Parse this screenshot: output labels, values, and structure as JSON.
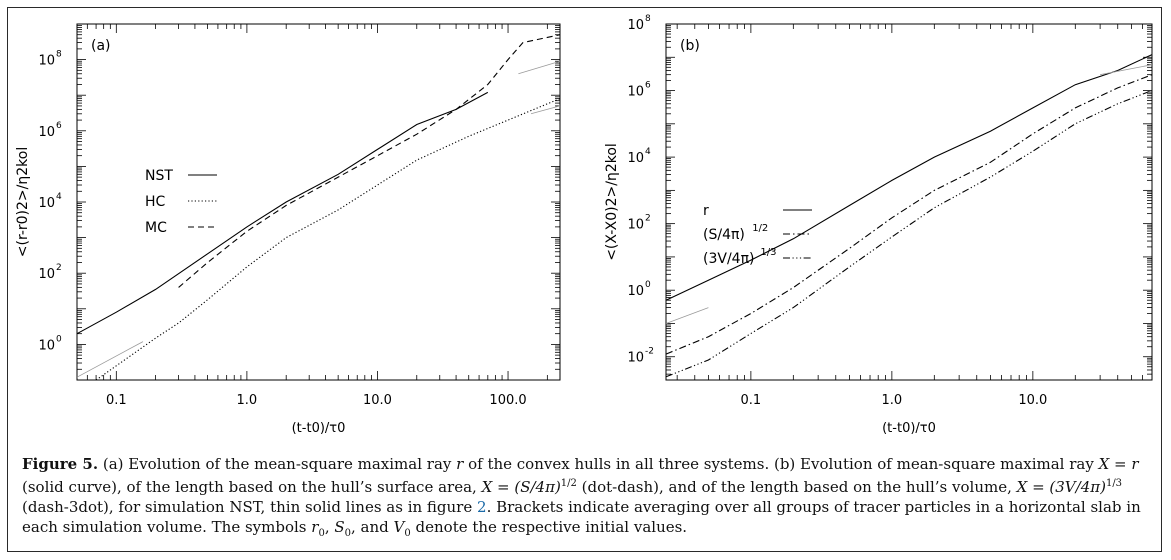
{
  "figure": {
    "caption": {
      "label": "Figure 5.",
      "segments": [
        " (a) Evolution of the mean-square maximal ray ",
        "r",
        " of the convex hulls in all three systems. (b)  Evolution of mean-square maximal ray ",
        "X = r",
        " (solid curve), of the length based on the hull’s surface area, ",
        "X = (S/4π)",
        "1/2",
        " (dot-dash), and of the length based on the hull’s volume, ",
        "X = (3V/4π)",
        "1/3",
        " (dash-3dot), for simulation NST, thin solid lines as in figure ",
        "2",
        ". Brackets indicate averaging over all groups of tracer particles in a horizontal slab in each simulation volume. The symbols ",
        "r",
        "0",
        ", ",
        "S",
        "0",
        ", and ",
        "V",
        "0",
        " denote the respective initial values."
      ]
    }
  },
  "chart_data": [
    {
      "type": "line",
      "panel_label": "(a)",
      "xlabel": "(t-t0)/τ0",
      "ylabel": "<(r-r0)2>/η2kol",
      "xscale": "log",
      "yscale": "log",
      "xlim": [
        0.05,
        250
      ],
      "ylim": [
        0.1,
        1000000000
      ],
      "xticks": [
        0.1,
        1.0,
        10.0,
        100.0
      ],
      "xtick_labels": [
        "0.1",
        "1.0",
        "10.0",
        "100.0"
      ],
      "yticks": [
        1,
        100,
        10000,
        1000000,
        100000000
      ],
      "ytick_labels": [
        "10",
        "10",
        "10",
        "10",
        "10"
      ],
      "ytick_exponents": [
        "0",
        "2",
        "4",
        "6",
        "8"
      ],
      "legend_position": "center-left",
      "series": [
        {
          "name": "NST",
          "style": "solid",
          "x": [
            0.05,
            0.1,
            0.2,
            0.5,
            1.0,
            2.0,
            5.0,
            10.0,
            20.0,
            40.0,
            70.0
          ],
          "y": [
            2,
            8,
            35,
            350,
            2000,
            10000,
            60000,
            300000,
            1500000,
            4000000,
            12000000
          ]
        },
        {
          "name": "HC",
          "style": "dotted",
          "x": [
            0.07,
            0.1,
            0.2,
            0.3,
            0.5,
            1.0,
            2.0,
            5.0,
            10.0,
            20.0,
            50.0,
            100.0,
            250.0
          ],
          "y": [
            0.1,
            0.25,
            1.5,
            4,
            18,
            150,
            1000,
            6000,
            30000,
            150000,
            700000,
            2000000,
            8000000
          ]
        },
        {
          "name": "MC",
          "style": "dashed",
          "x": [
            0.3,
            0.5,
            1.0,
            2.0,
            5.0,
            10.0,
            20.0,
            40.0,
            70.0,
            100.0,
            130.0,
            250.0
          ],
          "y": [
            40,
            200,
            1500,
            8000,
            50000,
            200000,
            800000,
            4000000,
            20000000,
            100000000,
            300000000,
            500000000
          ]
        },
        {
          "name": "",
          "style": "thin-solid",
          "x": [
            0.05,
            0.16
          ],
          "y": [
            0.12,
            1.2
          ]
        },
        {
          "name": "",
          "style": "thin-solid",
          "x": [
            120,
            250
          ],
          "y": [
            40000000,
            90000000
          ]
        },
        {
          "name": "",
          "style": "thin-solid",
          "x": [
            150,
            250
          ],
          "y": [
            3000000,
            5000000
          ]
        }
      ]
    },
    {
      "type": "line",
      "panel_label": "(b)",
      "xlabel": "(t-t0)/τ0",
      "ylabel": "<(X-X0)2>/η2kol",
      "xscale": "log",
      "yscale": "log",
      "xlim": [
        0.025,
        70
      ],
      "ylim": [
        0.002,
        100000000
      ],
      "xticks": [
        0.1,
        1.0,
        10.0
      ],
      "xtick_labels": [
        "0.1",
        "1.0",
        "10.0"
      ],
      "yticks": [
        0.01,
        1,
        100,
        10000,
        1000000,
        100000000
      ],
      "ytick_labels": [
        "10",
        "10",
        "10",
        "10",
        "10",
        "10"
      ],
      "ytick_exponents": [
        "-2",
        "0",
        "2",
        "4",
        "6",
        "8"
      ],
      "legend_position": "center",
      "legend_labels": [
        {
          "text": "r",
          "sup": ""
        },
        {
          "text": "(S/4π)",
          "sup": "1/2"
        },
        {
          "text": "(3V/4π)",
          "sup": "1/3"
        }
      ],
      "series": [
        {
          "name": "r",
          "style": "solid",
          "x": [
            0.025,
            0.05,
            0.1,
            0.2,
            0.5,
            1.0,
            2.0,
            5.0,
            10.0,
            20.0,
            40.0,
            70.0
          ],
          "y": [
            0.5,
            2,
            8,
            35,
            350,
            2000,
            10000,
            60000,
            300000,
            1500000,
            4000000,
            12000000
          ]
        },
        {
          "name": "(S/4π)1/2",
          "style": "dashdot",
          "x": [
            0.025,
            0.05,
            0.1,
            0.2,
            0.5,
            1.0,
            2.0,
            5.0,
            10.0,
            20.0,
            40.0,
            70.0
          ],
          "y": [
            0.012,
            0.04,
            0.2,
            1.2,
            18,
            150,
            1000,
            7000,
            50000,
            300000,
            1200000,
            3000000
          ]
        },
        {
          "name": "(3V/4π)1/3",
          "style": "dash3dot",
          "x": [
            0.025,
            0.05,
            0.1,
            0.2,
            0.5,
            1.0,
            2.0,
            5.0,
            10.0,
            20.0,
            40.0,
            70.0
          ],
          "y": [
            0.0025,
            0.008,
            0.05,
            0.3,
            5,
            40,
            300,
            2500,
            15000,
            100000,
            400000,
            1000000
          ]
        },
        {
          "name": "",
          "style": "thin-solid",
          "x": [
            0.025,
            0.05
          ],
          "y": [
            0.1,
            0.3
          ]
        },
        {
          "name": "",
          "style": "thin-solid",
          "x": [
            30,
            70
          ],
          "y": [
            3000000,
            6000000
          ]
        }
      ]
    }
  ]
}
